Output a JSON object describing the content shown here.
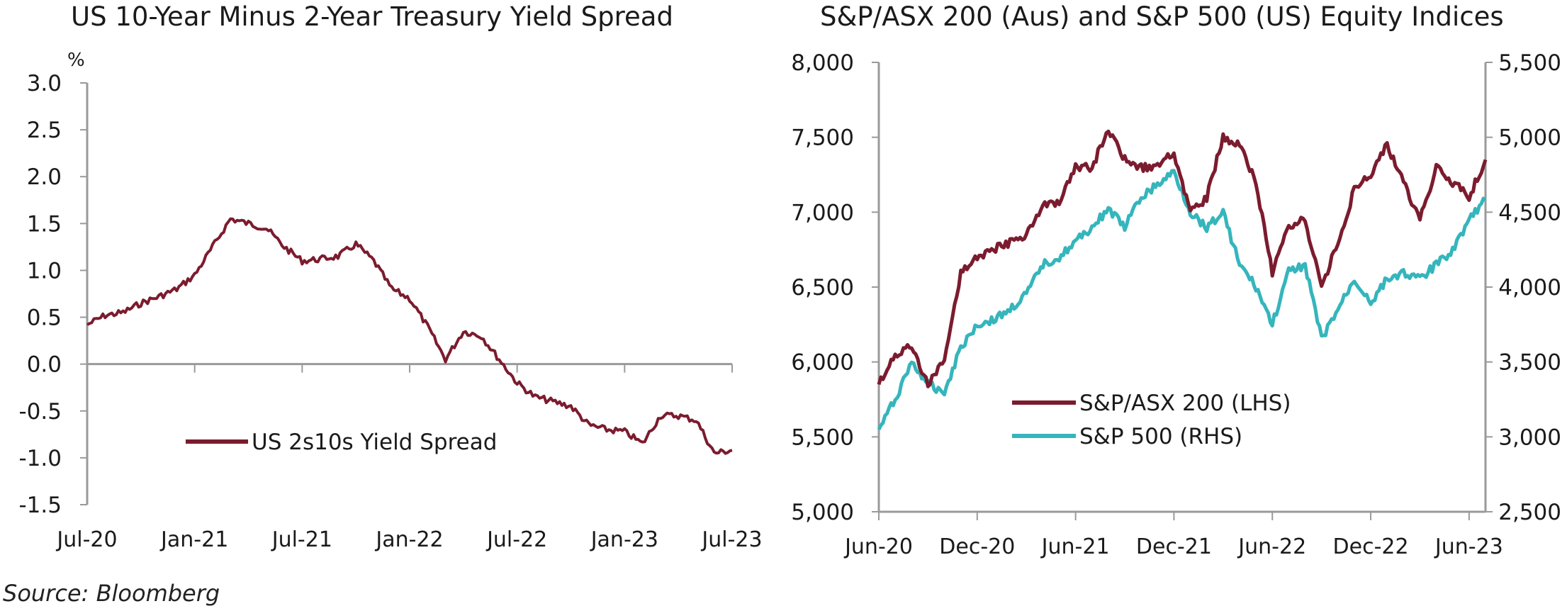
{
  "source": "Source: Bloomberg",
  "colors": {
    "maroon": "#7b1c2e",
    "teal": "#35b5bc",
    "axis": "#9a9a9a",
    "text": "#1a1a1a"
  },
  "chart_data": [
    {
      "type": "line",
      "title": "US 10-Year Minus 2-Year Treasury Yield Spread",
      "ylabel": "%",
      "ylim": [
        -1.5,
        3.0
      ],
      "yticks": [
        "3.0",
        "2.5",
        "2.0",
        "1.5",
        "1.0",
        "0.5",
        "0.0",
        "-0.5",
        "-1.0",
        "-1.5"
      ],
      "ytick_values": [
        3.0,
        2.5,
        2.0,
        1.5,
        1.0,
        0.5,
        0.0,
        -0.5,
        -1.0,
        -1.5
      ],
      "xticks": [
        "Jul-20",
        "Jan-21",
        "Jul-21",
        "Jan-22",
        "Jul-22",
        "Jan-23",
        "Jul-23"
      ],
      "xlim": [
        "2020-07",
        "2023-07"
      ],
      "legend": {
        "position": "lower-left"
      },
      "series": [
        {
          "name": "US 2s10s Yield Spread",
          "color": "#7b1c2e",
          "x": [
            "2020-07",
            "2020-08",
            "2020-09",
            "2020-10",
            "2020-11",
            "2020-12",
            "2021-01",
            "2021-02",
            "2021-03",
            "2021-04",
            "2021-05",
            "2021-06",
            "2021-07",
            "2021-08",
            "2021-09",
            "2021-10",
            "2021-11",
            "2021-12",
            "2022-01",
            "2022-02",
            "2022-03",
            "2022-04",
            "2022-05",
            "2022-06",
            "2022-07",
            "2022-08",
            "2022-09",
            "2022-10",
            "2022-11",
            "2022-12",
            "2023-01",
            "2023-02",
            "2023-03",
            "2023-04",
            "2023-05",
            "2023-06",
            "2023-07"
          ],
          "values": [
            0.42,
            0.52,
            0.55,
            0.65,
            0.72,
            0.8,
            0.95,
            1.25,
            1.55,
            1.5,
            1.45,
            1.25,
            1.1,
            1.12,
            1.15,
            1.28,
            1.1,
            0.8,
            0.7,
            0.4,
            0.05,
            0.35,
            0.3,
            0.05,
            -0.2,
            -0.35,
            -0.4,
            -0.45,
            -0.65,
            -0.7,
            -0.72,
            -0.85,
            -0.55,
            -0.55,
            -0.6,
            -0.95,
            -0.92
          ]
        }
      ]
    },
    {
      "type": "line",
      "title": "S&P/ASX 200 (Aus) and S&P 500 (US) Equity Indices",
      "ylim": [
        5000,
        8000
      ],
      "y2lim": [
        2500,
        5500
      ],
      "yticks": [
        "8,000",
        "7,500",
        "7,000",
        "6,500",
        "6,000",
        "5,500",
        "5,000"
      ],
      "ytick_values": [
        8000,
        7500,
        7000,
        6500,
        6000,
        5500,
        5000
      ],
      "y2ticks": [
        "5,500",
        "5,000",
        "4,500",
        "4,000",
        "3,500",
        "3,000",
        "2,500"
      ],
      "y2tick_values": [
        5500,
        5000,
        4500,
        4000,
        3500,
        3000,
        2500
      ],
      "xticks": [
        "Jun-20",
        "Dec-20",
        "Jun-21",
        "Dec-21",
        "Jun-22",
        "Dec-22",
        "Jun-23"
      ],
      "xlim": [
        "2020-06",
        "2023-07"
      ],
      "legend": {
        "position": "lower-center"
      },
      "series": [
        {
          "name": "S&P/ASX 200 (LHS)",
          "axis": "left",
          "color": "#7b1c2e",
          "x": [
            "2020-06",
            "2020-07",
            "2020-08",
            "2020-09",
            "2020-10",
            "2020-11",
            "2020-12",
            "2021-01",
            "2021-02",
            "2021-03",
            "2021-04",
            "2021-05",
            "2021-06",
            "2021-07",
            "2021-08",
            "2021-09",
            "2021-10",
            "2021-11",
            "2021-12",
            "2022-01",
            "2022-02",
            "2022-03",
            "2022-04",
            "2022-05",
            "2022-06",
            "2022-07",
            "2022-08",
            "2022-09",
            "2022-10",
            "2022-11",
            "2022-12",
            "2023-01",
            "2023-02",
            "2023-03",
            "2023-04",
            "2023-05",
            "2023-06",
            "2023-07"
          ],
          "values": [
            5850,
            6050,
            6100,
            5850,
            6000,
            6600,
            6700,
            6750,
            6800,
            6850,
            7050,
            7050,
            7300,
            7300,
            7550,
            7350,
            7300,
            7300,
            7400,
            7000,
            7100,
            7500,
            7450,
            7200,
            6600,
            6900,
            6950,
            6500,
            6800,
            7150,
            7250,
            7450,
            7200,
            6950,
            7300,
            7200,
            7100,
            7350
          ]
        },
        {
          "name": "S&P 500 (RHS)",
          "axis": "right",
          "color": "#35b5bc",
          "x": [
            "2020-06",
            "2020-07",
            "2020-08",
            "2020-09",
            "2020-10",
            "2020-11",
            "2020-12",
            "2021-01",
            "2021-02",
            "2021-03",
            "2021-04",
            "2021-05",
            "2021-06",
            "2021-07",
            "2021-08",
            "2021-09",
            "2021-10",
            "2021-11",
            "2021-12",
            "2022-01",
            "2022-02",
            "2022-03",
            "2022-04",
            "2022-05",
            "2022-06",
            "2022-07",
            "2022-08",
            "2022-09",
            "2022-10",
            "2022-11",
            "2022-12",
            "2023-01",
            "2023-02",
            "2023-03",
            "2023-04",
            "2023-05",
            "2023-06",
            "2023-07"
          ],
          "values": [
            3050,
            3250,
            3500,
            3350,
            3300,
            3600,
            3750,
            3780,
            3850,
            3950,
            4150,
            4200,
            4300,
            4400,
            4520,
            4400,
            4600,
            4680,
            4770,
            4500,
            4400,
            4500,
            4150,
            4000,
            3750,
            4100,
            4150,
            3650,
            3850,
            4050,
            3900,
            4050,
            4100,
            4050,
            4150,
            4250,
            4450,
            4580
          ]
        }
      ]
    }
  ]
}
